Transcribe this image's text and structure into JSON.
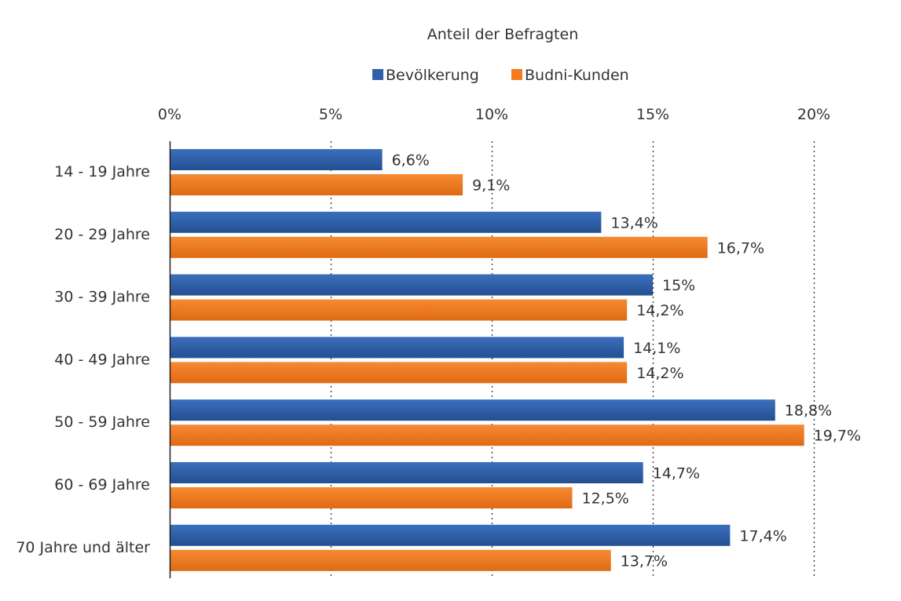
{
  "chart_data": {
    "type": "bar",
    "orientation": "horizontal",
    "title": "Anteil der Befragten",
    "categories": [
      "14 - 19 Jahre",
      "20 - 29 Jahre",
      "30 - 39 Jahre",
      "40 - 49 Jahre",
      "50 - 59 Jahre",
      "60 - 69 Jahre",
      "70 Jahre und älter"
    ],
    "series": [
      {
        "name": "Bevölkerung",
        "color": "#2e5fa8",
        "values": [
          6.6,
          13.4,
          15,
          14.1,
          18.8,
          14.7,
          17.4
        ],
        "labels": [
          "6,6%",
          "13,4%",
          "15%",
          "14,1%",
          "18,8%",
          "14,7%",
          "17,4%"
        ]
      },
      {
        "name": "Budni-Kunden",
        "color": "#f47b20",
        "values": [
          9.1,
          16.7,
          14.2,
          14.2,
          19.7,
          12.5,
          13.7
        ],
        "labels": [
          "9,1%",
          "16,7%",
          "14,2%",
          "14,2%",
          "19,7%",
          "12,5%",
          "13,7%"
        ]
      }
    ],
    "xlim": [
      0,
      20
    ],
    "ticks": [
      0,
      5,
      10,
      15,
      20
    ],
    "tick_labels": [
      "0%",
      "5%",
      "10%",
      "15%",
      "20%"
    ],
    "axis_position": "top",
    "grid": true,
    "legend_position": "top"
  }
}
